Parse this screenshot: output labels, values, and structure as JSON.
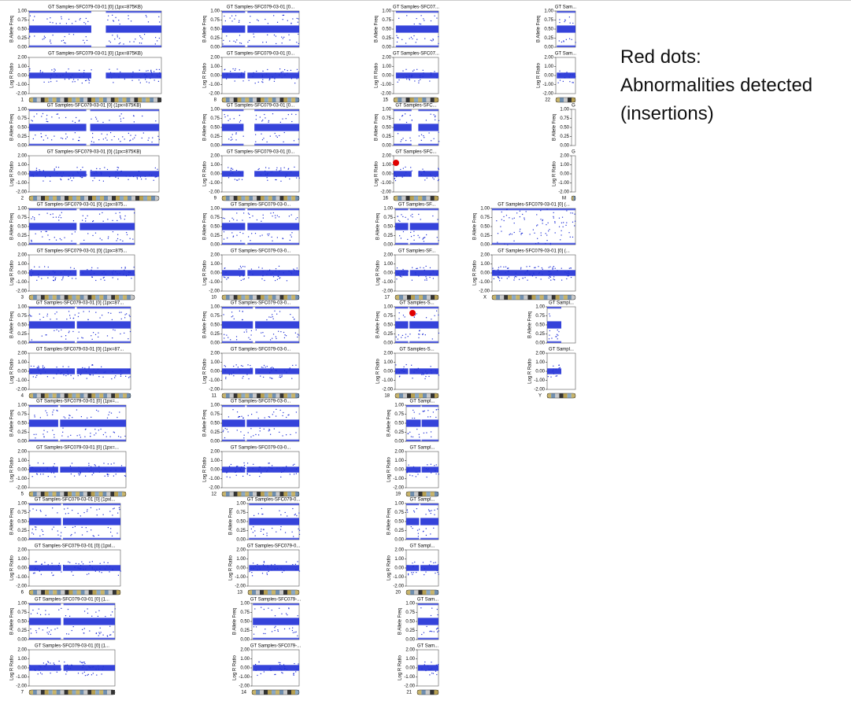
{
  "annotation": {
    "lines": [
      "Red dots:",
      "Abnormalities detected",
      "(insertions)"
    ]
  },
  "axes": {
    "baf_label": "B Allele Freq",
    "lrr_label": "Log R Ratio",
    "baf_ticks": [
      "1.00",
      "0.75",
      "0.50",
      "0.25",
      "0.00"
    ],
    "lrr_ticks": [
      "2.00",
      "1.00",
      "0.00",
      "-1.00",
      "-2.00"
    ]
  },
  "panels": [
    {
      "chromosome": "1",
      "title": "GT Samples-SFC079-03-01 [0]  (1px=875KB)"
    },
    {
      "chromosome": "2",
      "title": "GT Samples-SFC079-03-01 [0]  (1px=875KB)"
    },
    {
      "chromosome": "3",
      "title": "GT Samples-SFC079-03-01 [0] (1px=875..."
    },
    {
      "chromosome": "4",
      "title": "GT Samples-SFC079-03-01 [0] (1px=87..."
    },
    {
      "chromosome": "5",
      "title": "GT Samples-SFC079-03-01 [0] (1px=..."
    },
    {
      "chromosome": "6",
      "title": "GT Samples-SFC079-03-01 [0] (1pxl..."
    },
    {
      "chromosome": "7",
      "title": "GT Samples-SFC079-03-01 [0] (1..."
    },
    {
      "chromosome": "8",
      "title": "GT Samples-SFC079-03-01 [0..."
    },
    {
      "chromosome": "9",
      "title": "GT Samples-SFC079-03-01 [0..."
    },
    {
      "chromosome": "10",
      "title": "GT Samples-SFC079-03-0..."
    },
    {
      "chromosome": "11",
      "title": "GT Samples-SFC079-03-0..."
    },
    {
      "chromosome": "12",
      "title": "GT Samples-SFC079-03-0..."
    },
    {
      "chromosome": "13",
      "title": "GT Samples-SFC079-0..."
    },
    {
      "chromosome": "14",
      "title": "GT Samples-SFC079-..."
    },
    {
      "chromosome": "15",
      "title": "GT Samples-SFC07..."
    },
    {
      "chromosome": "16",
      "title": "GT Samples-SFC..."
    },
    {
      "chromosome": "17",
      "title": "GT Samples-SF..."
    },
    {
      "chromosome": "18",
      "title": "GT Samples-S..."
    },
    {
      "chromosome": "19",
      "title": "GT Sampl..."
    },
    {
      "chromosome": "20",
      "title": "GT Sampl..."
    },
    {
      "chromosome": "21",
      "title": "GT Sam..."
    },
    {
      "chromosome": "22",
      "title": "GT Sam..."
    },
    {
      "chromosome": "M",
      "title": "G"
    },
    {
      "chromosome": "X",
      "title": "GT Samples-SFC079-03-01 [0] (..."
    },
    {
      "chromosome": "Y",
      "title": "GT Sampl..."
    }
  ]
}
